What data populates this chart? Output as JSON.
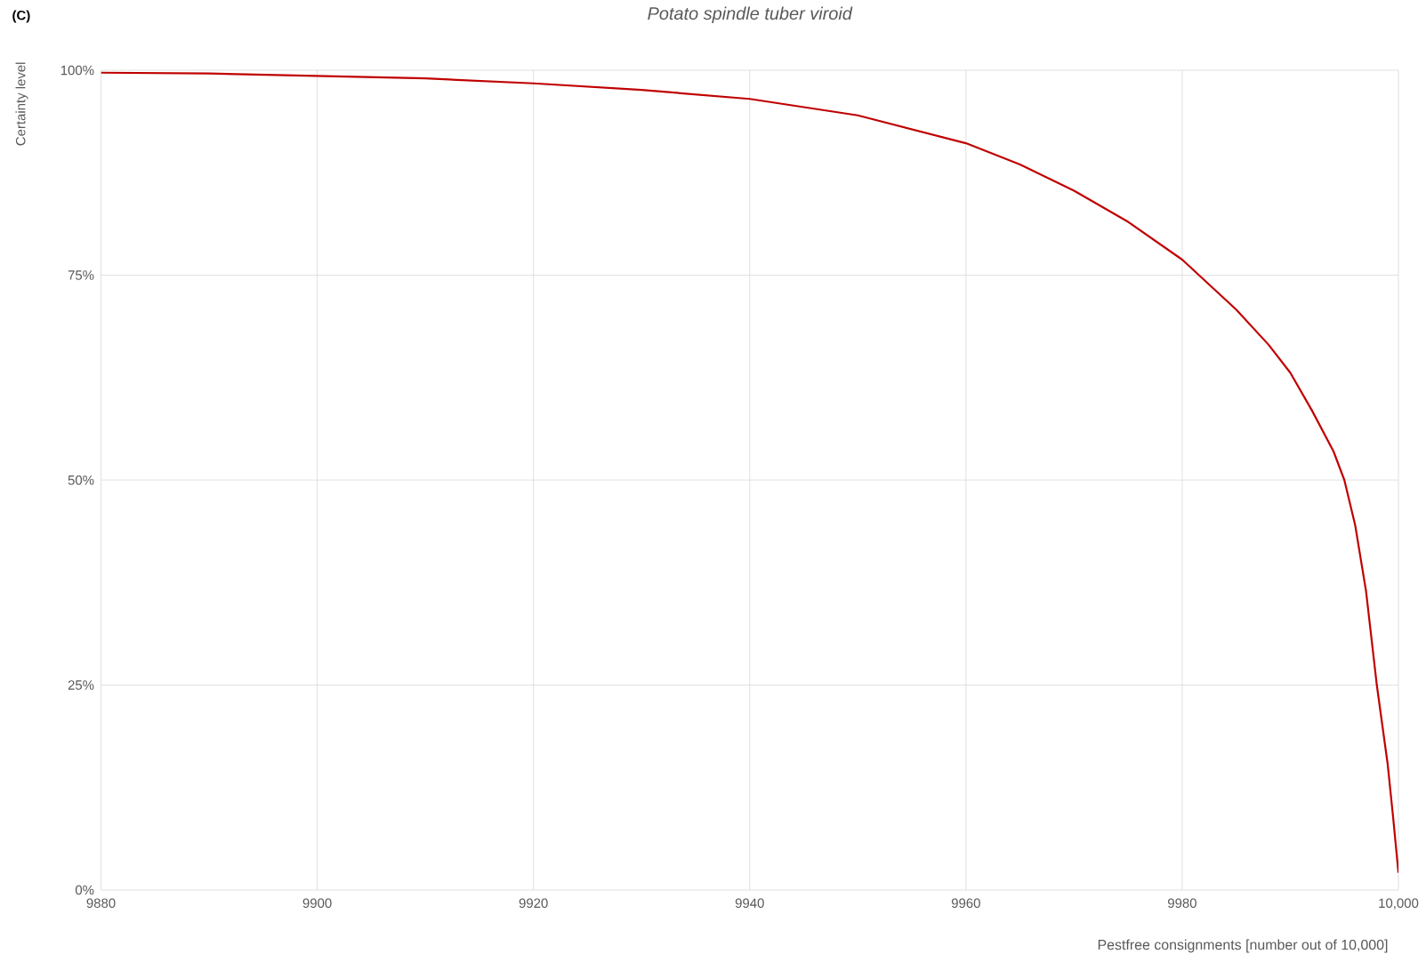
{
  "chart_data": {
    "type": "line",
    "title": "Potato spindle tuber viroid",
    "xlabel": "Pestfree consignments [number out of 10,000]",
    "ylabel": "Certainty level",
    "annotations": [
      "(C)"
    ],
    "x": [
      9880,
      9890,
      9900,
      9910,
      9920,
      9930,
      9940,
      9950,
      9960,
      9965,
      9970,
      9975,
      9980,
      9985,
      9988,
      9990,
      9992,
      9994,
      9995,
      9996,
      9997,
      9998,
      9999,
      9999.5,
      10000
    ],
    "series": [
      {
        "color": "#c00000",
        "values": [
          99.7,
          99.6,
          99.3,
          99.0,
          98.4,
          97.6,
          96.5,
          94.5,
          91.1,
          88.5,
          85.3,
          81.5,
          76.9,
          70.8,
          66.5,
          63.1,
          58.5,
          53.5,
          50.0,
          44.5,
          36.5,
          25.0,
          15.4,
          9.0,
          2.1
        ]
      }
    ],
    "xlim": [
      9880,
      10000
    ],
    "ylim": [
      0,
      100
    ],
    "xticks": [
      9880,
      9900,
      9920,
      9940,
      9960,
      9980,
      {
        "value": 10000,
        "label": "10,000"
      }
    ],
    "yticks": [
      {
        "value": 0,
        "label": "0%"
      },
      {
        "value": 25,
        "label": "25%"
      },
      {
        "value": 50,
        "label": "50%"
      },
      {
        "value": 75,
        "label": "75%"
      },
      {
        "value": 100,
        "label": "100%"
      }
    ],
    "grid": true,
    "marker": "none",
    "line_style": "solid"
  }
}
